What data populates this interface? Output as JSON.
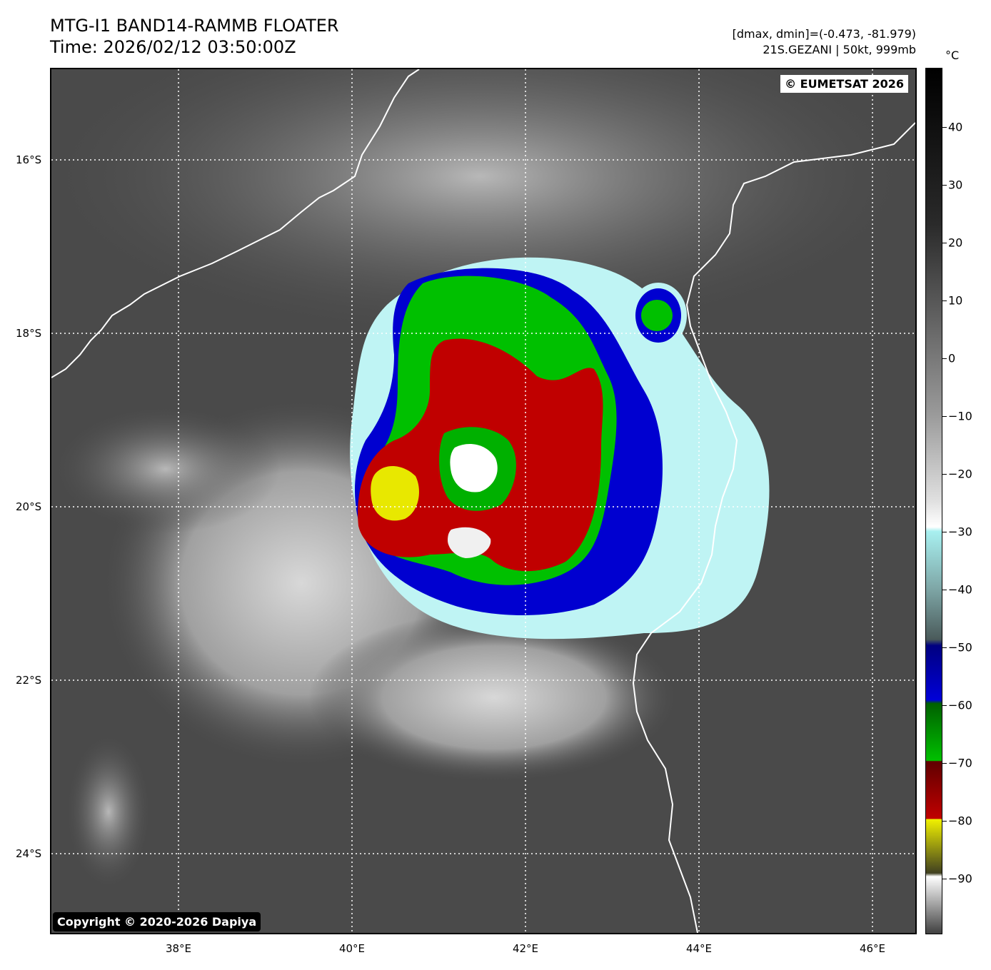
{
  "header": {
    "title_line1": "MTG-I1 BAND14-RAMMB FLOATER",
    "title_line2": "Time: 2026/02/12 03:50:00Z",
    "range_info": "[dmax, dmin]=(-0.473, -81.979)",
    "storm_info": "21S.GEZANI | 50kt, 999mb"
  },
  "map": {
    "eumetsat_credit": "© EUMETSAT 2026",
    "dapiya_credit": "Copyright © 2020-2026 Dapiya",
    "lat_labels": [
      "16°S",
      "18°S",
      "20°S",
      "22°S",
      "24°S"
    ],
    "lon_labels": [
      "38°E",
      "40°E",
      "42°E",
      "44°E",
      "46°E"
    ],
    "storm": {
      "name": "GEZANI",
      "id": "21S",
      "wind_kt": 50,
      "pressure_mb": 999
    }
  },
  "colorbar": {
    "unit": "°C",
    "ticks": [
      "40",
      "30",
      "20",
      "10",
      "0",
      "−10",
      "−20",
      "−30",
      "−40",
      "−50",
      "−60",
      "−70",
      "−80",
      "−90"
    ],
    "colors": {
      "warm": "#000000",
      "mid": "#9a9a9a",
      "cold_white": "#ffffff",
      "cyan": "#a8f0f0",
      "gray_blue": "#4a5a5a",
      "blue": "#0000d8",
      "green": "#00c000",
      "red": "#c00000",
      "yellow": "#f0f000",
      "olive": "#404020"
    }
  }
}
